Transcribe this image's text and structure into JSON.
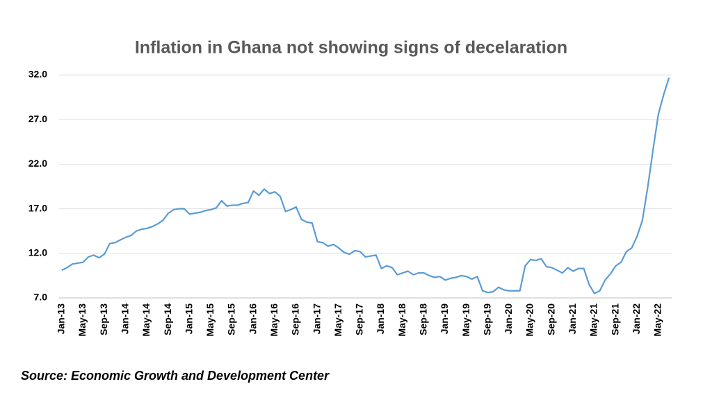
{
  "chart_data": {
    "type": "line",
    "title": "Inflation in Ghana not showing signs of decelaration",
    "source": "Source: Economic Growth and Development Center",
    "categories": [
      "Jan-13",
      null,
      null,
      null,
      "May-13",
      null,
      null,
      null,
      "Sep-13",
      null,
      null,
      null,
      "Jan-14",
      null,
      null,
      null,
      "May-14",
      null,
      null,
      null,
      "Sep-14",
      null,
      null,
      null,
      "Jan-15",
      null,
      null,
      null,
      "May-15",
      null,
      null,
      null,
      "Sep-15",
      null,
      null,
      null,
      "Jan-16",
      null,
      null,
      null,
      "May-16",
      null,
      null,
      null,
      "Sep-16",
      null,
      null,
      null,
      "Jan-17",
      null,
      null,
      null,
      "May-17",
      null,
      null,
      null,
      "Sep-17",
      null,
      null,
      null,
      "Jan-18",
      null,
      null,
      null,
      "May-18",
      null,
      null,
      null,
      "Sep-18",
      null,
      null,
      null,
      "Jan-19",
      null,
      null,
      null,
      "May-19",
      null,
      null,
      null,
      "Sep-19",
      null,
      null,
      null,
      "Jan-20",
      null,
      null,
      null,
      "May-20",
      null,
      null,
      null,
      "Sep-20",
      null,
      null,
      null,
      "Jan-21",
      null,
      null,
      null,
      "May-21",
      null,
      null,
      null,
      "Sep-21",
      null,
      null,
      null,
      "Jan-22",
      null,
      null,
      null,
      "May-22",
      null,
      null
    ],
    "series": [
      {
        "color": "#5b9bd5",
        "values": [
          10.1,
          10.4,
          10.8,
          10.9,
          11.0,
          11.6,
          11.8,
          11.5,
          11.9,
          13.1,
          13.2,
          13.5,
          13.8,
          14.0,
          14.5,
          14.7,
          14.8,
          15.0,
          15.3,
          15.7,
          16.5,
          16.9,
          17.0,
          17.0,
          16.4,
          16.5,
          16.6,
          16.8,
          16.9,
          17.1,
          17.9,
          17.3,
          17.4,
          17.4,
          17.6,
          17.7,
          19.0,
          18.5,
          19.2,
          18.7,
          18.9,
          18.4,
          16.7,
          16.9,
          17.2,
          15.8,
          15.5,
          15.4,
          13.3,
          13.2,
          12.8,
          13.0,
          12.6,
          12.1,
          11.9,
          12.3,
          12.2,
          11.6,
          11.7,
          11.8,
          10.3,
          10.6,
          10.4,
          9.6,
          9.8,
          10.0,
          9.6,
          9.8,
          9.8,
          9.5,
          9.3,
          9.4,
          9.0,
          9.2,
          9.3,
          9.5,
          9.4,
          9.1,
          9.4,
          7.8,
          7.6,
          7.7,
          8.2,
          7.9,
          7.8,
          7.8,
          7.8,
          10.6,
          11.3,
          11.2,
          11.4,
          10.5,
          10.4,
          10.1,
          9.8,
          10.4,
          10.0,
          10.3,
          10.3,
          8.5,
          7.5,
          7.8,
          9.0,
          9.7,
          10.6,
          11.0,
          12.2,
          12.6,
          13.9,
          15.7,
          19.4,
          23.6,
          27.6,
          29.8,
          31.7
        ]
      }
    ],
    "ylim": [
      7,
      32
    ],
    "yticks": [
      {
        "value": 7,
        "label": "7.0"
      },
      {
        "value": 12,
        "label": "12.0"
      },
      {
        "value": 17,
        "label": "17.0"
      },
      {
        "value": 22,
        "label": "22.0"
      },
      {
        "value": 27,
        "label": "27.0"
      },
      {
        "value": 32,
        "label": "32.0"
      }
    ],
    "grid": true
  }
}
